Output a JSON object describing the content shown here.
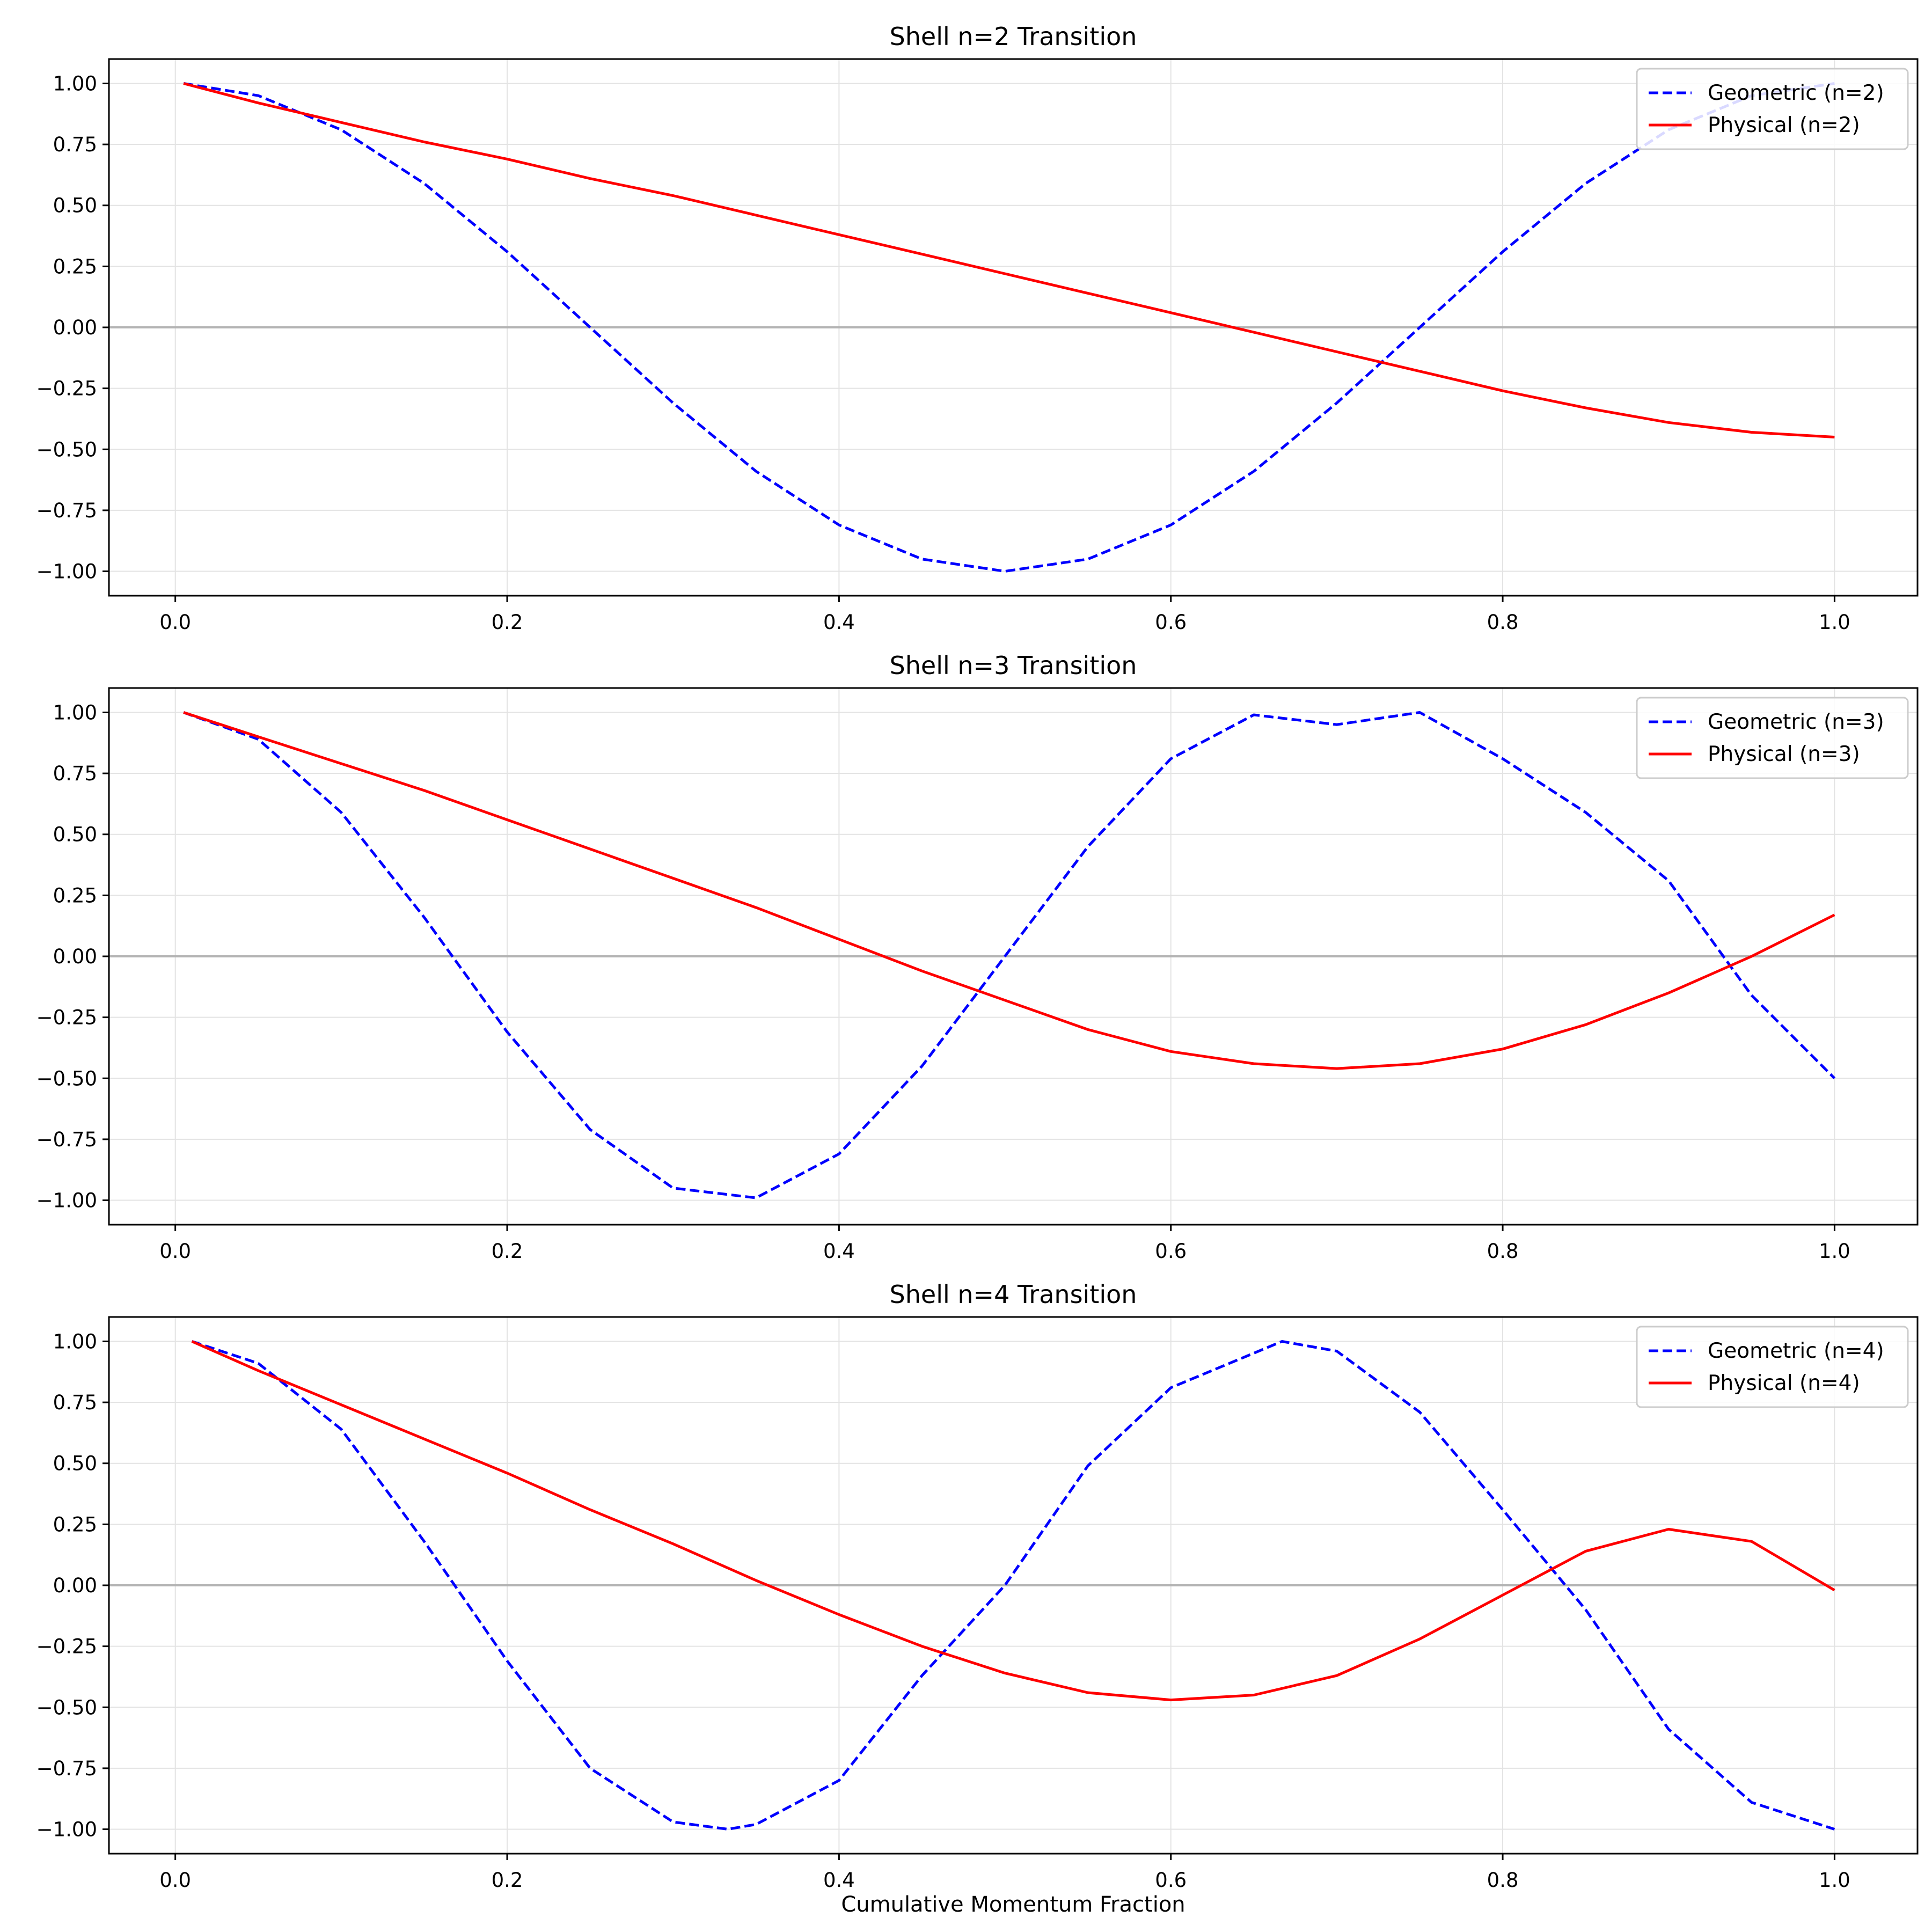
{
  "figure": {
    "xlabel": "Cumulative Momentum Fraction"
  },
  "colors": {
    "geometric": "#0000ff",
    "physical": "#ff0000",
    "grid": "#e3e3e3",
    "zero_line": "#b3b3b3"
  },
  "chart_data": [
    {
      "type": "line",
      "title": "Shell n=2 Transition",
      "xlabel": "",
      "ylabel": "",
      "xlim": [
        -0.04,
        1.05
      ],
      "ylim": [
        -1.1,
        1.1
      ],
      "xticks": [
        0.0,
        0.2,
        0.4,
        0.6,
        0.8,
        1.0
      ],
      "xtick_labels": [
        "0.0",
        "0.2",
        "0.4",
        "0.6",
        "0.8",
        "1.0"
      ],
      "yticks": [
        1.0,
        0.75,
        0.5,
        0.25,
        0.0,
        -0.25,
        -0.5,
        -0.75,
        -1.0
      ],
      "ytick_labels": [
        "1.00",
        "0.75",
        "0.50",
        "0.25",
        "0.00",
        "−0.25",
        "−0.50",
        "−0.75",
        "−1.00"
      ],
      "grid": true,
      "legend_position": "top-right",
      "series": [
        {
          "name": "Geometric (n=2)",
          "style": "dashed",
          "color": "#0000ff",
          "x": [
            0.005,
            0.05,
            0.1,
            0.15,
            0.2,
            0.25,
            0.3,
            0.35,
            0.4,
            0.45,
            0.5,
            0.55,
            0.6,
            0.65,
            0.7,
            0.75,
            0.8,
            0.85,
            0.9,
            0.95,
            1.0
          ],
          "y": [
            1.0,
            0.95,
            0.81,
            0.59,
            0.31,
            0.0,
            -0.31,
            -0.59,
            -0.81,
            -0.95,
            -1.0,
            -0.95,
            -0.81,
            -0.59,
            -0.31,
            0.0,
            0.31,
            0.59,
            0.81,
            0.95,
            1.0
          ]
        },
        {
          "name": "Physical (n=2)",
          "style": "solid",
          "color": "#ff0000",
          "x": [
            0.005,
            0.05,
            0.1,
            0.15,
            0.2,
            0.25,
            0.3,
            0.35,
            0.4,
            0.45,
            0.5,
            0.55,
            0.6,
            0.65,
            0.7,
            0.75,
            0.8,
            0.85,
            0.9,
            0.95,
            1.0
          ],
          "y": [
            1.0,
            0.92,
            0.84,
            0.76,
            0.69,
            0.61,
            0.54,
            0.46,
            0.38,
            0.3,
            0.22,
            0.14,
            0.06,
            -0.02,
            -0.1,
            -0.18,
            -0.26,
            -0.33,
            -0.39,
            -0.43,
            -0.45
          ]
        }
      ]
    },
    {
      "type": "line",
      "title": "Shell n=3 Transition",
      "xlabel": "",
      "ylabel": "",
      "xlim": [
        -0.04,
        1.05
      ],
      "ylim": [
        -1.1,
        1.1
      ],
      "xticks": [
        0.0,
        0.2,
        0.4,
        0.6,
        0.8,
        1.0
      ],
      "xtick_labels": [
        "0.0",
        "0.2",
        "0.4",
        "0.6",
        "0.8",
        "1.0"
      ],
      "yticks": [
        1.0,
        0.75,
        0.5,
        0.25,
        0.0,
        -0.25,
        -0.5,
        -0.75,
        -1.0
      ],
      "ytick_labels": [
        "1.00",
        "0.75",
        "0.50",
        "0.25",
        "0.00",
        "−0.25",
        "−0.50",
        "−0.75",
        "−1.00"
      ],
      "grid": true,
      "legend_position": "top-right",
      "series": [
        {
          "name": "Geometric (n=3)",
          "style": "dashed",
          "color": "#0000ff",
          "x": [
            0.005,
            0.05,
            0.1,
            0.15,
            0.2,
            0.25,
            0.3,
            0.35,
            0.4,
            0.45,
            0.5,
            0.55,
            0.6,
            0.65,
            0.7,
            0.75,
            0.8,
            0.85,
            0.9,
            0.95,
            1.0
          ],
          "y": [
            1.0,
            0.89,
            0.59,
            0.16,
            -0.31,
            -0.71,
            -0.95,
            -0.99,
            -0.81,
            -0.45,
            0.0,
            0.45,
            0.81,
            0.99,
            0.95,
            1.0,
            0.81,
            0.59,
            0.31,
            -0.16,
            -0.5
          ]
        },
        {
          "name": "Physical (n=3)",
          "style": "solid",
          "color": "#ff0000",
          "x": [
            0.005,
            0.05,
            0.1,
            0.15,
            0.2,
            0.25,
            0.3,
            0.35,
            0.4,
            0.45,
            0.5,
            0.55,
            0.6,
            0.65,
            0.7,
            0.75,
            0.8,
            0.85,
            0.9,
            0.95,
            1.0
          ],
          "y": [
            1.0,
            0.9,
            0.79,
            0.68,
            0.56,
            0.44,
            0.32,
            0.2,
            0.07,
            -0.06,
            -0.18,
            -0.3,
            -0.39,
            -0.44,
            -0.46,
            -0.44,
            -0.38,
            -0.28,
            -0.15,
            0.0,
            0.17
          ]
        }
      ]
    },
    {
      "type": "line",
      "title": "Shell n=4 Transition",
      "xlabel": "Cumulative Momentum Fraction",
      "ylabel": "",
      "xlim": [
        -0.04,
        1.05
      ],
      "ylim": [
        -1.1,
        1.1
      ],
      "xticks": [
        0.0,
        0.2,
        0.4,
        0.6,
        0.8,
        1.0
      ],
      "xtick_labels": [
        "0.0",
        "0.2",
        "0.4",
        "0.6",
        "0.8",
        "1.0"
      ],
      "yticks": [
        1.0,
        0.75,
        0.5,
        0.25,
        0.0,
        -0.25,
        -0.5,
        -0.75,
        -1.0
      ],
      "ytick_labels": [
        "1.00",
        "0.75",
        "0.50",
        "0.25",
        "0.00",
        "−0.25",
        "−0.50",
        "−0.75",
        "−1.00"
      ],
      "grid": true,
      "legend_position": "top-right",
      "series": [
        {
          "name": "Geometric (n=4)",
          "style": "dashed",
          "color": "#0000ff",
          "x": [
            0.01,
            0.05,
            0.1,
            0.15,
            0.2,
            0.25,
            0.3,
            0.333,
            0.35,
            0.4,
            0.45,
            0.5,
            0.55,
            0.6,
            0.667,
            0.7,
            0.75,
            0.8,
            0.85,
            0.9,
            0.95,
            1.0
          ],
          "y": [
            1.0,
            0.91,
            0.64,
            0.18,
            -0.31,
            -0.75,
            -0.97,
            -1.0,
            -0.98,
            -0.8,
            -0.37,
            0.0,
            0.49,
            0.81,
            1.0,
            0.96,
            0.71,
            0.31,
            -0.1,
            -0.59,
            -0.89,
            -1.0
          ]
        },
        {
          "name": "Physical (n=4)",
          "style": "solid",
          "color": "#ff0000",
          "x": [
            0.01,
            0.05,
            0.1,
            0.15,
            0.2,
            0.25,
            0.3,
            0.35,
            0.4,
            0.45,
            0.5,
            0.55,
            0.6,
            0.65,
            0.7,
            0.75,
            0.8,
            0.85,
            0.9,
            0.95,
            1.0
          ],
          "y": [
            1.0,
            0.88,
            0.74,
            0.6,
            0.46,
            0.31,
            0.17,
            0.02,
            -0.12,
            -0.25,
            -0.36,
            -0.44,
            -0.47,
            -0.45,
            -0.37,
            -0.22,
            -0.04,
            0.14,
            0.23,
            0.18,
            -0.02
          ]
        }
      ]
    }
  ]
}
